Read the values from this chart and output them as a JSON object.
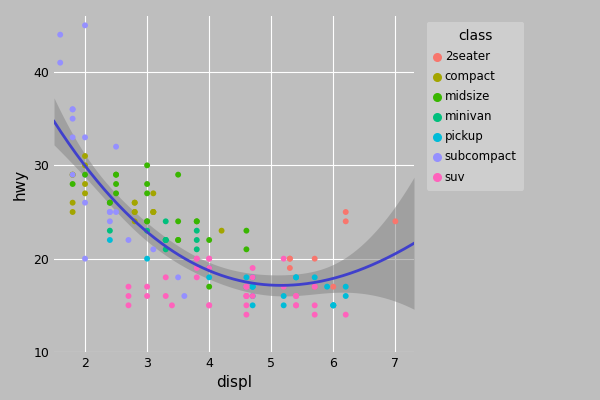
{
  "xlabel": "displ",
  "ylabel": "hwy",
  "legend_title": "class",
  "bg_color": "#BEBEBE",
  "plot_bg_color": "#BEBEBE",
  "grid_color": "#FFFFFF",
  "smooth_color": "#4040CC",
  "smooth_ci_color": "#888888",
  "xlim": [
    1.5,
    7.3
  ],
  "ylim": [
    10,
    46
  ],
  "xticks": [
    2,
    3,
    4,
    5,
    6,
    7
  ],
  "yticks": [
    10,
    20,
    30,
    40
  ],
  "class_colors": {
    "2seater": "#F8766D",
    "compact": "#A3A500",
    "midsize": "#39B600",
    "minivan": "#00BF7D",
    "pickup": "#00BCD8",
    "subcompact": "#9590FF",
    "suv": "#FF62BC"
  },
  "legend_order": [
    "2seater",
    "compact",
    "midsize",
    "minivan",
    "pickup",
    "subcompact",
    "suv"
  ],
  "points": [
    [
      1.8,
      29,
      "compact"
    ],
    [
      1.8,
      29,
      "compact"
    ],
    [
      2.0,
      31,
      "compact"
    ],
    [
      2.0,
      30,
      "compact"
    ],
    [
      2.8,
      26,
      "compact"
    ],
    [
      2.8,
      26,
      "compact"
    ],
    [
      3.1,
      27,
      "compact"
    ],
    [
      1.8,
      26,
      "compact"
    ],
    [
      1.8,
      25,
      "compact"
    ],
    [
      2.0,
      28,
      "compact"
    ],
    [
      2.0,
      27,
      "compact"
    ],
    [
      2.8,
      25,
      "compact"
    ],
    [
      2.8,
      25,
      "compact"
    ],
    [
      3.1,
      25,
      "compact"
    ],
    [
      3.1,
      25,
      "compact"
    ],
    [
      2.8,
      24,
      "compact"
    ],
    [
      3.1,
      25,
      "compact"
    ],
    [
      4.2,
      23,
      "compact"
    ],
    [
      5.3,
      20,
      "2seater"
    ],
    [
      5.3,
      20,
      "2seater"
    ],
    [
      5.3,
      19,
      "2seater"
    ],
    [
      5.7,
      20,
      "2seater"
    ],
    [
      6.0,
      17,
      "2seater"
    ],
    [
      5.7,
      17,
      "2seater"
    ],
    [
      6.2,
      25,
      "2seater"
    ],
    [
      6.2,
      24,
      "2seater"
    ],
    [
      7.0,
      24,
      "2seater"
    ],
    [
      1.8,
      36,
      "subcompact"
    ],
    [
      1.8,
      36,
      "subcompact"
    ],
    [
      2.0,
      29,
      "subcompact"
    ],
    [
      2.4,
      26,
      "subcompact"
    ],
    [
      2.4,
      24,
      "subcompact"
    ],
    [
      3.1,
      21,
      "subcompact"
    ],
    [
      3.5,
      18,
      "subcompact"
    ],
    [
      3.6,
      16,
      "subcompact"
    ],
    [
      2.5,
      29,
      "midsize"
    ],
    [
      2.5,
      27,
      "midsize"
    ],
    [
      2.5,
      28,
      "midsize"
    ],
    [
      2.5,
      29,
      "midsize"
    ],
    [
      3.0,
      30,
      "midsize"
    ],
    [
      3.0,
      28,
      "midsize"
    ],
    [
      3.5,
      29,
      "midsize"
    ],
    [
      1.8,
      28,
      "midsize"
    ],
    [
      2.0,
      29,
      "midsize"
    ],
    [
      2.4,
      26,
      "midsize"
    ],
    [
      2.4,
      26,
      "midsize"
    ],
    [
      3.0,
      27,
      "midsize"
    ],
    [
      3.0,
      24,
      "midsize"
    ],
    [
      3.0,
      24,
      "midsize"
    ],
    [
      3.5,
      24,
      "midsize"
    ],
    [
      3.5,
      22,
      "midsize"
    ],
    [
      3.5,
      22,
      "midsize"
    ],
    [
      3.8,
      24,
      "midsize"
    ],
    [
      3.8,
      24,
      "midsize"
    ],
    [
      4.0,
      17,
      "midsize"
    ],
    [
      4.0,
      22,
      "midsize"
    ],
    [
      4.6,
      21,
      "midsize"
    ],
    [
      4.6,
      23,
      "midsize"
    ],
    [
      2.4,
      23,
      "minivan"
    ],
    [
      3.0,
      23,
      "minivan"
    ],
    [
      3.3,
      22,
      "minivan"
    ],
    [
      3.3,
      22,
      "minivan"
    ],
    [
      3.3,
      21,
      "minivan"
    ],
    [
      3.3,
      22,
      "minivan"
    ],
    [
      3.3,
      24,
      "minivan"
    ],
    [
      3.8,
      23,
      "minivan"
    ],
    [
      3.8,
      22,
      "minivan"
    ],
    [
      3.8,
      21,
      "minivan"
    ],
    [
      2.0,
      20,
      "subcompact"
    ],
    [
      2.0,
      33,
      "subcompact"
    ],
    [
      2.5,
      32,
      "subcompact"
    ],
    [
      1.6,
      41,
      "subcompact"
    ],
    [
      1.6,
      44,
      "subcompact"
    ],
    [
      2.0,
      45,
      "subcompact"
    ],
    [
      1.8,
      35,
      "subcompact"
    ],
    [
      1.8,
      33,
      "subcompact"
    ],
    [
      1.8,
      29,
      "subcompact"
    ],
    [
      2.0,
      26,
      "subcompact"
    ],
    [
      2.4,
      25,
      "subcompact"
    ],
    [
      2.4,
      25,
      "subcompact"
    ],
    [
      2.5,
      25,
      "subcompact"
    ],
    [
      2.7,
      22,
      "subcompact"
    ],
    [
      5.4,
      18,
      "pickup"
    ],
    [
      5.4,
      18,
      "pickup"
    ],
    [
      4.7,
      17,
      "pickup"
    ],
    [
      4.7,
      17,
      "pickup"
    ],
    [
      4.7,
      16,
      "pickup"
    ],
    [
      4.7,
      18,
      "pickup"
    ],
    [
      4.7,
      15,
      "pickup"
    ],
    [
      4.7,
      17,
      "pickup"
    ],
    [
      5.2,
      16,
      "pickup"
    ],
    [
      5.2,
      15,
      "pickup"
    ],
    [
      5.7,
      18,
      "pickup"
    ],
    [
      5.9,
      17,
      "pickup"
    ],
    [
      6.0,
      15,
      "pickup"
    ],
    [
      6.0,
      15,
      "pickup"
    ],
    [
      6.0,
      15,
      "pickup"
    ],
    [
      6.2,
      16,
      "pickup"
    ],
    [
      6.2,
      17,
      "pickup"
    ],
    [
      4.0,
      19,
      "pickup"
    ],
    [
      4.0,
      18,
      "pickup"
    ],
    [
      4.6,
      17,
      "pickup"
    ],
    [
      4.6,
      18,
      "pickup"
    ],
    [
      3.3,
      18,
      "suv"
    ],
    [
      3.3,
      16,
      "suv"
    ],
    [
      4.0,
      15,
      "suv"
    ],
    [
      4.0,
      15,
      "suv"
    ],
    [
      4.6,
      14,
      "suv"
    ],
    [
      4.6,
      15,
      "suv"
    ],
    [
      4.6,
      17,
      "suv"
    ],
    [
      4.6,
      16,
      "suv"
    ],
    [
      5.4,
      15,
      "suv"
    ],
    [
      5.4,
      15,
      "suv"
    ],
    [
      5.4,
      16,
      "suv"
    ],
    [
      5.4,
      16,
      "suv"
    ],
    [
      5.7,
      15,
      "suv"
    ],
    [
      6.2,
      14,
      "suv"
    ],
    [
      3.8,
      20,
      "suv"
    ],
    [
      3.8,
      19,
      "suv"
    ],
    [
      3.8,
      20,
      "suv"
    ],
    [
      3.8,
      18,
      "suv"
    ],
    [
      4.0,
      20,
      "suv"
    ],
    [
      4.0,
      19,
      "suv"
    ],
    [
      3.0,
      17,
      "suv"
    ],
    [
      3.0,
      16,
      "suv"
    ],
    [
      4.6,
      17,
      "suv"
    ],
    [
      4.6,
      17,
      "suv"
    ],
    [
      4.6,
      16,
      "suv"
    ],
    [
      4.7,
      18,
      "suv"
    ],
    [
      5.2,
      17,
      "suv"
    ],
    [
      5.7,
      17,
      "suv"
    ],
    [
      2.7,
      16,
      "suv"
    ],
    [
      2.7,
      17,
      "suv"
    ],
    [
      2.7,
      15,
      "suv"
    ],
    [
      3.4,
      15,
      "suv"
    ],
    [
      4.7,
      16,
      "suv"
    ],
    [
      4.7,
      19,
      "suv"
    ],
    [
      5.2,
      20,
      "suv"
    ],
    [
      5.7,
      14,
      "suv"
    ],
    [
      4.6,
      16,
      "suv"
    ],
    [
      4.0,
      20,
      "suv"
    ],
    [
      2.4,
      22,
      "pickup"
    ],
    [
      3.0,
      20,
      "pickup"
    ]
  ]
}
